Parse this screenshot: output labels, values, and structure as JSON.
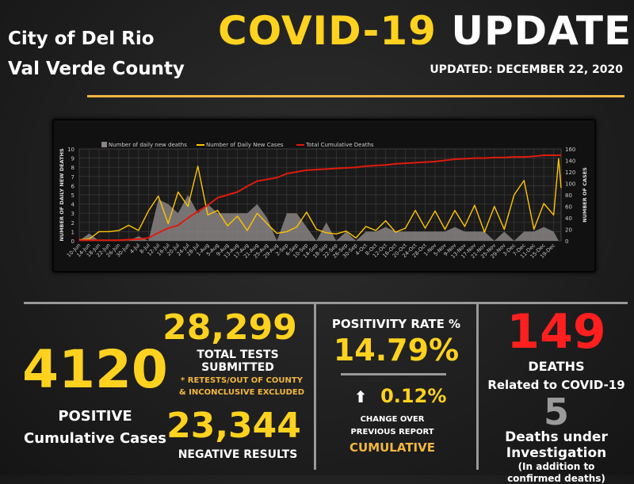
{
  "header": {
    "city_line1": "City of Del Rio",
    "city_line2": "Val Verde County",
    "title_part1": "COVID-19",
    "title_part2": "UPDATE",
    "updated": "UPDATED: DECEMBER 22, 2020"
  },
  "stats": {
    "positive_value": "4120",
    "positive_label1": "POSITIVE",
    "positive_label2": "Cumulative Cases",
    "tests_value": "28,299",
    "tests_label1": "TOTAL TESTS",
    "tests_label2": "SUBMITTED",
    "tests_note1": "* RETESTS/OUT OF COUNTY",
    "tests_note2": "& INCONCLUSIVE EXCLUDED",
    "negative_value": "23,344",
    "negative_label": "NEGATIVE RESULTS",
    "positivity_label": "POSITIVITY RATE %",
    "positivity_value": "14.79%",
    "change_arrow": "⬆",
    "change_value": "0.12%",
    "change_label1": "CHANGE OVER",
    "change_label2": "PREVIOUS REPORT",
    "cumulative_label": "CUMULATIVE",
    "deaths_value": "149",
    "deaths_label": "DEATHS",
    "deaths_sub": "Related to COVID-19",
    "investigation_value": "5",
    "investigation_label1": "Deaths under",
    "investigation_label2": "Investigation",
    "investigation_note1": "(In addition to",
    "investigation_note2": "confirmed deaths)"
  },
  "colors": {
    "accent_yellow": "#ffd21f",
    "deaths_red": "#ff1f1f",
    "cases_line": "#ffc400",
    "cumulative_line": "#e01b0b",
    "daily_deaths_area": "#8a8484"
  },
  "chart_data": {
    "type": "line",
    "legend": [
      "Number of daily new deaths",
      "Number of Daily New Cases",
      "Total Cumulative Deaths"
    ],
    "legend_position": "top",
    "ylabel_left": "NUMBER OF DAILY NEW DEATHS",
    "ylabel_right": "NUMBER OF CASES",
    "ylim_left": [
      0,
      10
    ],
    "yticks_left": [
      0,
      1,
      2,
      3,
      4,
      5,
      6,
      7,
      8,
      9,
      10
    ],
    "ylim_right": [
      0,
      160
    ],
    "yticks_right": [
      0,
      20,
      40,
      60,
      80,
      100,
      120,
      140,
      160
    ],
    "grid": true,
    "year": 2020,
    "x_tick_labels": [
      "10-Jun",
      "14-Jun",
      "18-Jun",
      "22-Jun",
      "26-Jun",
      "30-Jun",
      "4-Jul",
      "8-Jul",
      "12-Jul",
      "16-Jul",
      "20-Jul",
      "24-Jul",
      "28-Jul",
      "1-Aug",
      "5-Aug",
      "9-Aug",
      "13-Aug",
      "17-Aug",
      "21-Aug",
      "25-Aug",
      "29-Aug",
      "2-Sep",
      "6-Sep",
      "10-Sep",
      "14-Sep",
      "18-Sep",
      "22-Sep",
      "26-Sep",
      "30-Sep",
      "4-Oct",
      "8-Oct",
      "12-Oct",
      "16-Oct",
      "20-Oct",
      "24-Oct",
      "28-Oct",
      "1-Nov",
      "5-Nov",
      "9-Nov",
      "13-Nov",
      "17-Nov",
      "21-Nov",
      "25-Nov",
      "29-Nov",
      "3-Dec",
      "7-Dec",
      "11-Dec",
      "15-Dec",
      "19-Dec"
    ],
    "x": [
      "10-Jun",
      "14-Jun",
      "18-Jun",
      "22-Jun",
      "26-Jun",
      "30-Jun",
      "4-Jul",
      "8-Jul",
      "12-Jul",
      "16-Jul",
      "20-Jul",
      "24-Jul",
      "28-Jul",
      "1-Aug",
      "5-Aug",
      "9-Aug",
      "13-Aug",
      "17-Aug",
      "21-Aug",
      "25-Aug",
      "29-Aug",
      "2-Sep",
      "6-Sep",
      "10-Sep",
      "14-Sep",
      "18-Sep",
      "22-Sep",
      "26-Sep",
      "30-Sep",
      "4-Oct",
      "8-Oct",
      "12-Oct",
      "16-Oct",
      "20-Oct",
      "24-Oct",
      "28-Oct",
      "1-Nov",
      "5-Nov",
      "9-Nov",
      "13-Nov",
      "17-Nov",
      "21-Nov",
      "25-Nov",
      "29-Nov",
      "3-Dec",
      "7-Dec",
      "11-Dec",
      "15-Dec",
      "19-Dec",
      "21-Dec",
      "22-Dec"
    ],
    "series": [
      {
        "name": "Number of daily new deaths",
        "axis": "left",
        "kind": "area",
        "values": [
          0,
          0.8,
          0,
          0,
          0,
          0,
          0.5,
          0,
          4.5,
          4,
          3,
          5,
          3,
          4,
          3,
          3,
          3,
          3,
          4,
          2.5,
          0,
          3,
          3,
          1.5,
          0,
          2,
          0,
          1,
          0,
          1,
          1,
          1.5,
          1,
          1,
          1,
          1,
          1,
          1,
          1.5,
          1,
          1,
          1,
          0,
          1,
          0,
          1,
          1,
          1.5,
          1,
          0,
          0
        ]
      },
      {
        "name": "Number of Daily New Cases",
        "axis": "right",
        "kind": "line",
        "values": [
          2,
          3,
          16,
          16,
          18,
          27,
          18,
          52,
          78,
          30,
          85,
          60,
          130,
          45,
          53,
          26,
          43,
          18,
          48,
          30,
          13,
          16,
          24,
          50,
          20,
          14,
          12,
          17,
          5,
          25,
          18,
          35,
          15,
          22,
          53,
          22,
          52,
          20,
          53,
          25,
          62,
          15,
          60,
          20,
          80,
          105,
          20,
          65,
          45,
          143,
          92
        ]
      },
      {
        "name": "Total Cumulative Deaths",
        "axis": "right",
        "kind": "line",
        "values": [
          1,
          1,
          1,
          1,
          1,
          2,
          3,
          5,
          14,
          22,
          27,
          40,
          51,
          62,
          75,
          80,
          85,
          95,
          104,
          107,
          110,
          117,
          120,
          123,
          124,
          125,
          126,
          127,
          128,
          130,
          131,
          132,
          134,
          135,
          136,
          137,
          138,
          140,
          142,
          143,
          144,
          144,
          145,
          145,
          146,
          146,
          147,
          149,
          149,
          149,
          149
        ]
      }
    ]
  }
}
